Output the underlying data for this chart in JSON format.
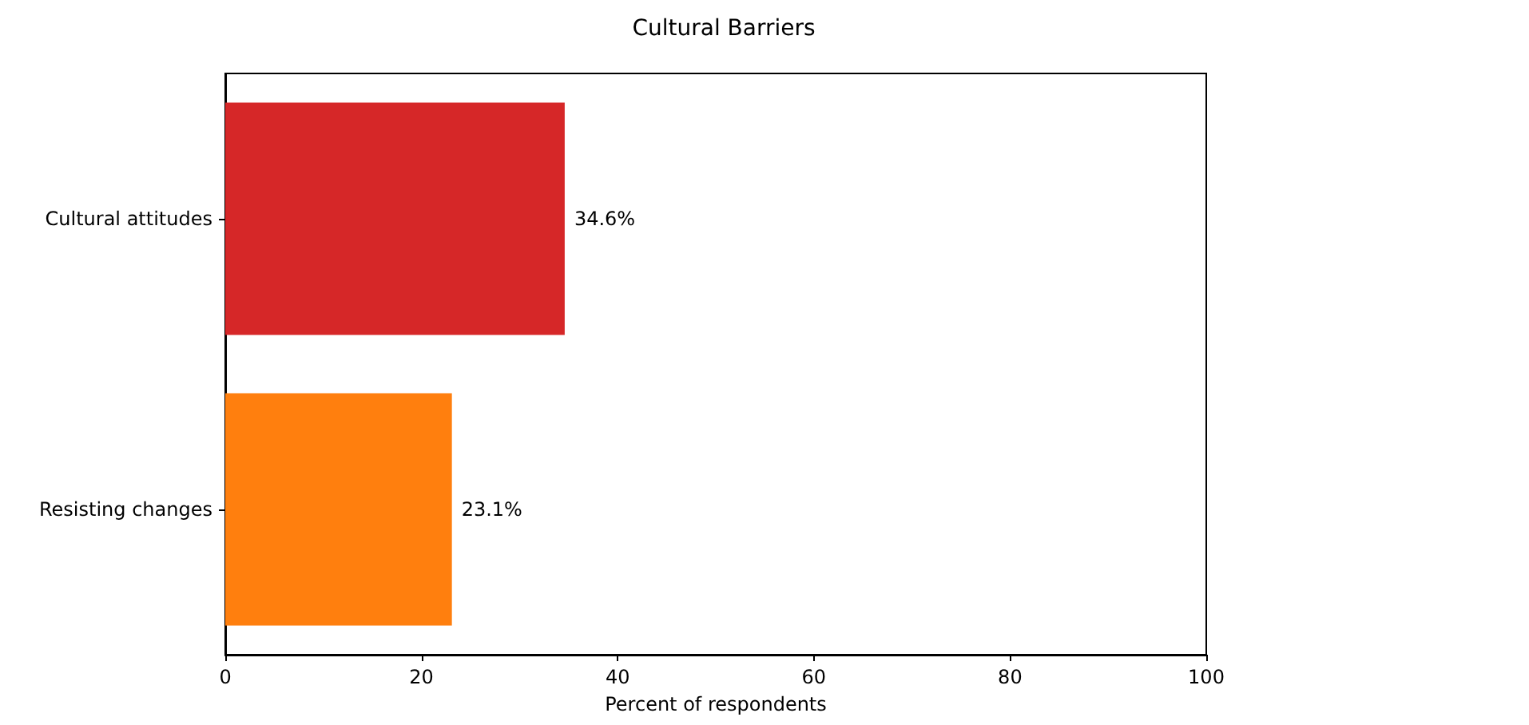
{
  "chart_data": {
    "type": "bar",
    "title": "Cultural Barriers",
    "xlabel": "Percent of respondents",
    "orientation": "horizontal",
    "categories": [
      "Cultural attitudes",
      "Resisting changes"
    ],
    "values": [
      34.6,
      23.1
    ],
    "colors": [
      "#d62728",
      "#ff7f0e"
    ],
    "value_labels": [
      "34.6%",
      "23.1%"
    ],
    "xlim": [
      0,
      100
    ],
    "xticks": [
      0,
      20,
      40,
      60,
      80,
      100
    ],
    "grid": false
  }
}
